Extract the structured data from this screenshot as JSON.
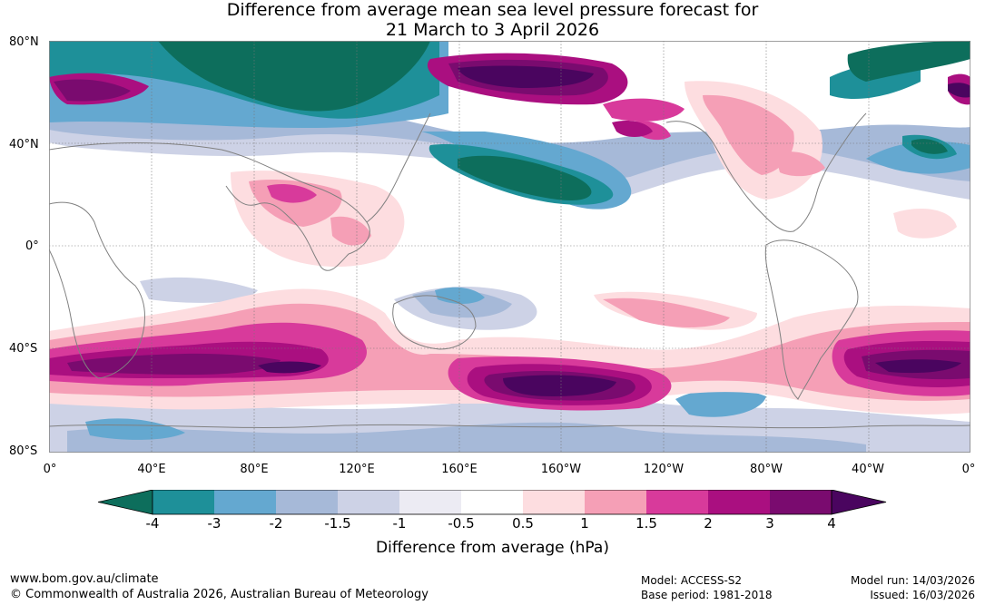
{
  "title_line1": "Difference from average mean sea level pressure forecast for",
  "title_line2": "21 March to 3 April 2026",
  "lat_labels": [
    "80°N",
    "40°N",
    "0°",
    "40°S",
    "80°S"
  ],
  "lon_labels": [
    "0°",
    "40°E",
    "80°E",
    "120°E",
    "160°E",
    "160°W",
    "120°W",
    "80°W",
    "40°W",
    "0°"
  ],
  "colorbar": {
    "label": "Difference from average (hPa)",
    "ticks": [
      "-4",
      "-3",
      "-2",
      "-1.5",
      "-1",
      "-0.5",
      "0.5",
      "1",
      "1.5",
      "2",
      "3",
      "4"
    ],
    "colors": [
      "#0d6e5c",
      "#1e9099",
      "#64a8d0",
      "#a6b9d8",
      "#cdd2e6",
      "#ecebf3",
      "#ffffff",
      "#fddde0",
      "#f59fb6",
      "#d83a9b",
      "#aa0f80",
      "#7a0b6f",
      "#4a055f"
    ]
  },
  "map": {
    "neutral_color": "#ffffff",
    "coast_color": "#808080",
    "grid_color": "#777777"
  },
  "footer": {
    "url": "www.bom.gov.au/climate",
    "copyright": "© Commonwealth of Australia 2026, Australian Bureau of Meteorology",
    "model": "Model: ACCESS-S2",
    "base_period": "Base period: 1981-2018",
    "model_run": "Model run: 14/03/2026",
    "issued": "Issued: 16/03/2026"
  }
}
